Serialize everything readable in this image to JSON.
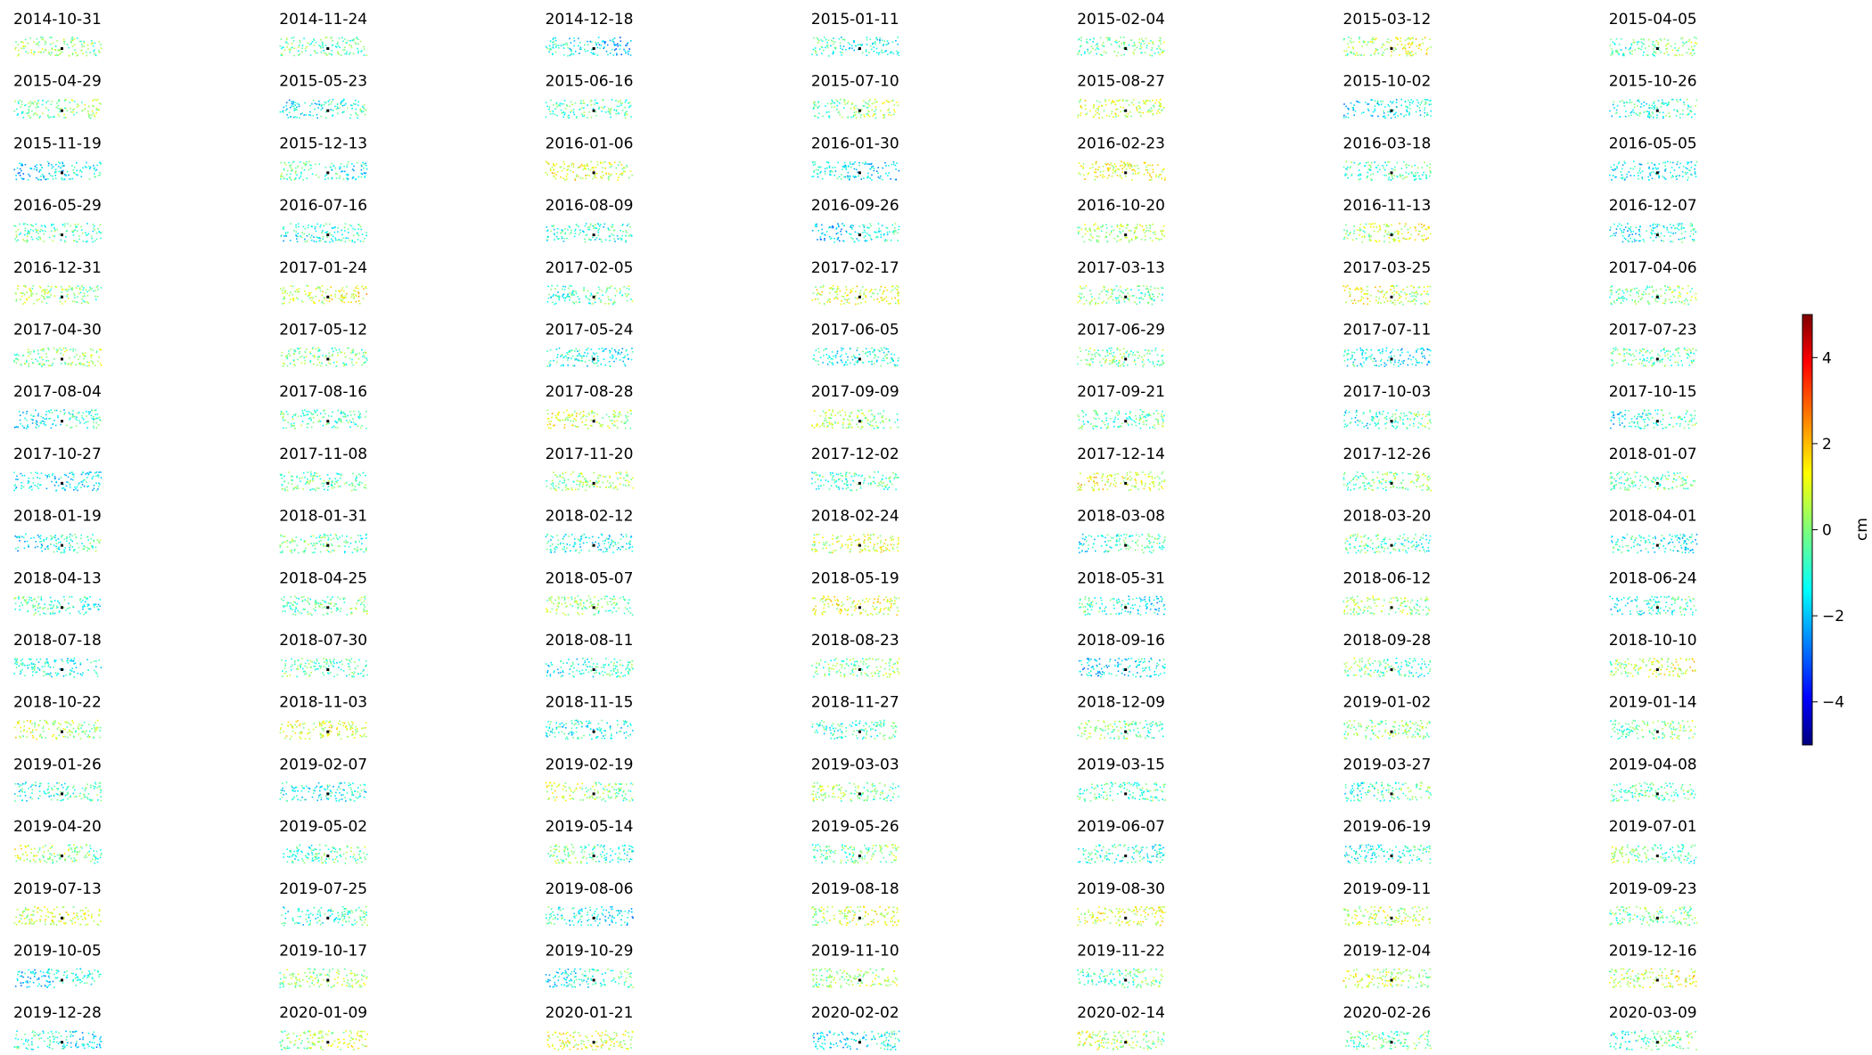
{
  "chart_data": {
    "type": "small_multiples",
    "titles": [
      "2014-10-31",
      "2014-11-24",
      "2014-12-18",
      "2015-01-11",
      "2015-02-04",
      "2015-03-12",
      "2015-04-05",
      "2015-04-29",
      "2015-05-23",
      "2015-06-16",
      "2015-07-10",
      "2015-08-27",
      "2015-10-02",
      "2015-10-26",
      "2015-11-19",
      "2015-12-13",
      "2016-01-06",
      "2016-01-30",
      "2016-02-23",
      "2016-03-18",
      "2016-05-05",
      "2016-05-29",
      "2016-07-16",
      "2016-08-09",
      "2016-09-26",
      "2016-10-20",
      "2016-11-13",
      "2016-12-07",
      "2016-12-31",
      "2017-01-24",
      "2017-02-05",
      "2017-02-17",
      "2017-03-13",
      "2017-03-25",
      "2017-04-06",
      "2017-04-30",
      "2017-05-12",
      "2017-05-24",
      "2017-06-05",
      "2017-06-29",
      "2017-07-11",
      "2017-07-23",
      "2017-08-04",
      "2017-08-16",
      "2017-08-28",
      "2017-09-09",
      "2017-09-21",
      "2017-10-03",
      "2017-10-15",
      "2017-10-27",
      "2017-11-08",
      "2017-11-20",
      "2017-12-02",
      "2017-12-14",
      "2017-12-26",
      "2018-01-07",
      "2018-01-19",
      "2018-01-31",
      "2018-02-12",
      "2018-02-24",
      "2018-03-08",
      "2018-03-20",
      "2018-04-01",
      "2018-04-13",
      "2018-04-25",
      "2018-05-07",
      "2018-05-19",
      "2018-05-31",
      "2018-06-12",
      "2018-06-24",
      "2018-07-18",
      "2018-07-30",
      "2018-08-11",
      "2018-08-23",
      "2018-09-16",
      "2018-09-28",
      "2018-10-10",
      "2018-10-22",
      "2018-11-03",
      "2018-11-15",
      "2018-11-27",
      "2018-12-09",
      "2019-01-02",
      "2019-01-14",
      "2019-01-26",
      "2019-02-07",
      "2019-02-19",
      "2019-03-03",
      "2019-03-15",
      "2019-03-27",
      "2019-04-08",
      "2019-04-20",
      "2019-05-02",
      "2019-05-14",
      "2019-05-26",
      "2019-06-07",
      "2019-06-19",
      "2019-07-01",
      "2019-07-13",
      "2019-07-25",
      "2019-08-06",
      "2019-08-18",
      "2019-08-30",
      "2019-09-11",
      "2019-09-23",
      "2019-10-05",
      "2019-10-17",
      "2019-10-29",
      "2019-11-10",
      "2019-11-22",
      "2019-12-04",
      "2019-12-16",
      "2019-12-28",
      "2020-01-09",
      "2020-01-21",
      "2020-02-02",
      "2020-02-14",
      "2020-02-26",
      "2020-03-09"
    ],
    "colorbar": {
      "label": "cm",
      "colormap": "jet",
      "lim": [
        -5,
        5
      ],
      "ticks": [
        {
          "value": -4,
          "label": "−4"
        },
        {
          "value": -2,
          "label": "−2"
        },
        0,
        2,
        4
      ]
    }
  }
}
